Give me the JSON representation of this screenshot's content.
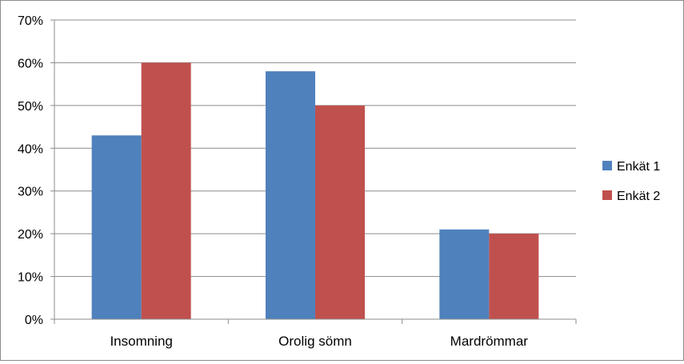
{
  "chart_data": {
    "type": "bar",
    "categories": [
      "Insomning",
      "Orolig sömn",
      "Mardrömmar"
    ],
    "series": [
      {
        "name": "Enkät 1",
        "values": [
          43,
          58,
          21
        ],
        "color": "#4f81bd"
      },
      {
        "name": "Enkät 2",
        "values": [
          60,
          50,
          20
        ],
        "color": "#c0504d"
      }
    ],
    "yticks": [
      "0%",
      "10%",
      "20%",
      "30%",
      "40%",
      "50%",
      "60%",
      "70%"
    ],
    "ylim": [
      0,
      70
    ],
    "ystep": 10,
    "yunit": "%",
    "grid": true,
    "legend_position": "right"
  }
}
